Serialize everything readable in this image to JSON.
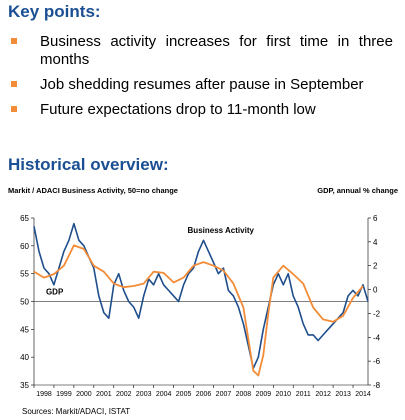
{
  "key_points": {
    "title": "Key points:",
    "items": [
      "Business activity increases for first time in three months",
      "Job shedding resumes after pause in September",
      "Future expectations drop to 11-month low"
    ]
  },
  "overview": {
    "title": "Historical overview:",
    "left_caption": "Markit / ADACI  Business Activity, 50=no change",
    "right_caption": "GDP, annual % change",
    "source": "Sources: Markit/ADACI, ISTAT"
  },
  "colors": {
    "heading": "#1b4f93",
    "bullet": "#f28c38",
    "business_activity": "#1f4e8c",
    "gdp": "#f28c38"
  },
  "chart_data": {
    "type": "line",
    "left_ylim": [
      35,
      65
    ],
    "left_ticks": [
      35,
      40,
      45,
      50,
      55,
      60,
      65
    ],
    "right_ylim": [
      -8,
      6
    ],
    "right_ticks": [
      -8,
      -6,
      -4,
      -2,
      0,
      2,
      4,
      6
    ],
    "reference_line": 50,
    "x_labels": [
      "1998",
      "1999",
      "2000",
      "2001",
      "2002",
      "2003",
      "2004",
      "2005",
      "2006",
      "2007",
      "2008",
      "2009",
      "2010",
      "2011",
      "2012",
      "2013",
      "2014"
    ],
    "series": [
      {
        "name": "Business Activity",
        "axis": "left",
        "x": [
          1998.0,
          1998.25,
          1998.5,
          1998.75,
          1999.0,
          1999.25,
          1999.5,
          1999.75,
          2000.0,
          2000.25,
          2000.5,
          2000.75,
          2001.0,
          2001.25,
          2001.5,
          2001.75,
          2002.0,
          2002.25,
          2002.5,
          2002.75,
          2003.0,
          2003.25,
          2003.5,
          2003.75,
          2004.0,
          2004.25,
          2004.5,
          2004.75,
          2005.0,
          2005.25,
          2005.5,
          2005.75,
          2006.0,
          2006.25,
          2006.5,
          2006.75,
          2007.0,
          2007.25,
          2007.5,
          2007.75,
          2008.0,
          2008.25,
          2008.5,
          2008.75,
          2009.0,
          2009.25,
          2009.5,
          2009.75,
          2010.0,
          2010.25,
          2010.5,
          2010.75,
          2011.0,
          2011.25,
          2011.5,
          2011.75,
          2012.0,
          2012.25,
          2012.5,
          2012.75,
          2013.0,
          2013.25,
          2013.5,
          2013.75,
          2014.0,
          2014.25,
          2014.5,
          2014.75
        ],
        "values": [
          63.5,
          59,
          56,
          55,
          53,
          56,
          59,
          61,
          64,
          61,
          60,
          58,
          56,
          51,
          48,
          47,
          53,
          55,
          52,
          50,
          49,
          47,
          51,
          54,
          53,
          55,
          53,
          52,
          51,
          50,
          53,
          55,
          56,
          59,
          61,
          59,
          57,
          55,
          56,
          52,
          51,
          49,
          46,
          42,
          38,
          40,
          45,
          49,
          53,
          55,
          53,
          55,
          51,
          49,
          46,
          44,
          44,
          43,
          44,
          45,
          46,
          47,
          48,
          51,
          52,
          51,
          53,
          50
        ]
      },
      {
        "name": "GDP",
        "axis": "right",
        "x": [
          1998.0,
          1998.5,
          1999.0,
          1999.5,
          2000.0,
          2000.5,
          2001.0,
          2001.5,
          2002.0,
          2002.5,
          2003.0,
          2003.5,
          2004.0,
          2004.5,
          2005.0,
          2005.5,
          2006.0,
          2006.5,
          2007.0,
          2007.5,
          2008.0,
          2008.5,
          2009.0,
          2009.25,
          2009.5,
          2009.75,
          2010.0,
          2010.5,
          2011.0,
          2011.5,
          2012.0,
          2012.5,
          2013.0,
          2013.5,
          2014.0,
          2014.5
        ],
        "values": [
          1.5,
          1.0,
          1.3,
          2.0,
          3.7,
          3.4,
          2.0,
          1.5,
          0.5,
          0.2,
          0.3,
          0.5,
          1.5,
          1.4,
          0.6,
          1.0,
          2.0,
          2.3,
          2.0,
          1.6,
          0.5,
          -1.5,
          -6.8,
          -7.2,
          -5.5,
          -2.0,
          1.0,
          2.0,
          1.3,
          0.5,
          -1.5,
          -2.5,
          -2.7,
          -2.2,
          -0.7,
          0.3
        ]
      }
    ],
    "annotations": [
      {
        "text": "Business Activity",
        "series": "Business Activity"
      },
      {
        "text": "GDP",
        "series": "GDP"
      }
    ]
  }
}
